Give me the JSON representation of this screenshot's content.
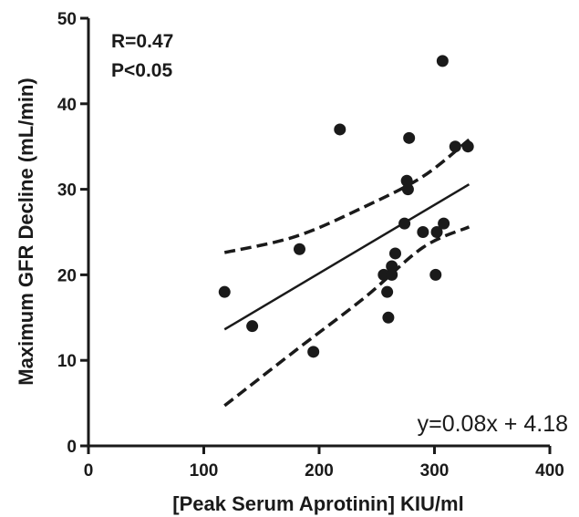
{
  "chart_data": {
    "type": "scatter",
    "xlabel": "[Peak Serum Aprotinin] KIU/ml",
    "ylabel": "Maximum GFR Decline  (mL/min)",
    "xlim": [
      0,
      400
    ],
    "ylim": [
      0,
      50
    ],
    "xticks": [
      0,
      100,
      200,
      300,
      400
    ],
    "yticks": [
      0,
      10,
      20,
      30,
      40,
      50
    ],
    "grid": false,
    "annotations": {
      "r": "R=0.47",
      "p": "P<0.05",
      "equation": "y=0.08x + 4.18"
    },
    "points": [
      {
        "x": 118,
        "y": 18
      },
      {
        "x": 142,
        "y": 14
      },
      {
        "x": 183,
        "y": 23
      },
      {
        "x": 195,
        "y": 11
      },
      {
        "x": 218,
        "y": 37
      },
      {
        "x": 256,
        "y": 20
      },
      {
        "x": 259,
        "y": 18
      },
      {
        "x": 260,
        "y": 15
      },
      {
        "x": 263,
        "y": 20
      },
      {
        "x": 263,
        "y": 21
      },
      {
        "x": 266,
        "y": 22.5
      },
      {
        "x": 274,
        "y": 26
      },
      {
        "x": 276,
        "y": 31
      },
      {
        "x": 277,
        "y": 30
      },
      {
        "x": 278,
        "y": 36
      },
      {
        "x": 290,
        "y": 25
      },
      {
        "x": 301,
        "y": 20
      },
      {
        "x": 302,
        "y": 25
      },
      {
        "x": 307,
        "y": 45
      },
      {
        "x": 308,
        "y": 26
      },
      {
        "x": 318,
        "y": 35
      },
      {
        "x": 329,
        "y": 35
      }
    ],
    "fit": {
      "slope": 0.08,
      "intercept": 4.18,
      "x_range": [
        118,
        330
      ]
    },
    "ci_upper": [
      [
        118,
        22.6
      ],
      [
        180,
        24.5
      ],
      [
        240,
        28.0
      ],
      [
        290,
        31.5
      ],
      [
        330,
        35.8
      ]
    ],
    "ci_lower": [
      [
        118,
        4.7
      ],
      [
        180,
        11.2
      ],
      [
        240,
        17.4
      ],
      [
        290,
        23.2
      ],
      [
        330,
        25.6
      ]
    ]
  }
}
